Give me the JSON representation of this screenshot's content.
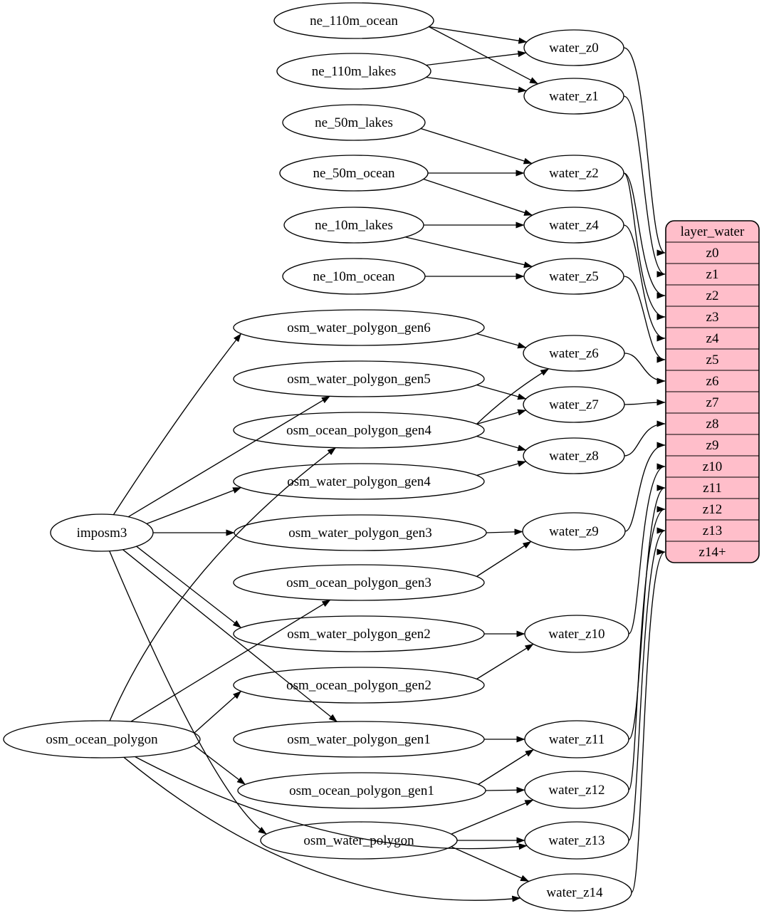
{
  "diagram": {
    "kind": "etl-flow-graph",
    "colors": {
      "background": "#ffffff",
      "node_fill": "#ffffff",
      "table_fill": "#ffbeca",
      "stroke": "#000000"
    },
    "nodes": [
      {
        "id": "imposm3",
        "label": "imposm3"
      },
      {
        "id": "osm_ocean_polygon",
        "label": "osm_ocean_polygon"
      },
      {
        "id": "ne_110m_ocean",
        "label": "ne_110m_ocean"
      },
      {
        "id": "ne_110m_lakes",
        "label": "ne_110m_lakes"
      },
      {
        "id": "ne_50m_lakes",
        "label": "ne_50m_lakes"
      },
      {
        "id": "ne_50m_ocean",
        "label": "ne_50m_ocean"
      },
      {
        "id": "ne_10m_lakes",
        "label": "ne_10m_lakes"
      },
      {
        "id": "ne_10m_ocean",
        "label": "ne_10m_ocean"
      },
      {
        "id": "osm_water_polygon_gen6",
        "label": "osm_water_polygon_gen6"
      },
      {
        "id": "osm_water_polygon_gen5",
        "label": "osm_water_polygon_gen5"
      },
      {
        "id": "osm_ocean_polygon_gen4",
        "label": "osm_ocean_polygon_gen4"
      },
      {
        "id": "osm_water_polygon_gen4",
        "label": "osm_water_polygon_gen4"
      },
      {
        "id": "osm_water_polygon_gen3",
        "label": "osm_water_polygon_gen3"
      },
      {
        "id": "osm_ocean_polygon_gen3",
        "label": "osm_ocean_polygon_gen3"
      },
      {
        "id": "osm_water_polygon_gen2",
        "label": "osm_water_polygon_gen2"
      },
      {
        "id": "osm_ocean_polygon_gen2",
        "label": "osm_ocean_polygon_gen2"
      },
      {
        "id": "osm_water_polygon_gen1",
        "label": "osm_water_polygon_gen1"
      },
      {
        "id": "osm_ocean_polygon_gen1",
        "label": "osm_ocean_polygon_gen1"
      },
      {
        "id": "osm_water_polygon",
        "label": "osm_water_polygon"
      },
      {
        "id": "water_z0",
        "label": "water_z0"
      },
      {
        "id": "water_z1",
        "label": "water_z1"
      },
      {
        "id": "water_z2",
        "label": "water_z2"
      },
      {
        "id": "water_z4",
        "label": "water_z4"
      },
      {
        "id": "water_z5",
        "label": "water_z5"
      },
      {
        "id": "water_z6",
        "label": "water_z6"
      },
      {
        "id": "water_z7",
        "label": "water_z7"
      },
      {
        "id": "water_z8",
        "label": "water_z8"
      },
      {
        "id": "water_z9",
        "label": "water_z9"
      },
      {
        "id": "water_z10",
        "label": "water_z10"
      },
      {
        "id": "water_z11",
        "label": "water_z11"
      },
      {
        "id": "water_z12",
        "label": "water_z12"
      },
      {
        "id": "water_z13",
        "label": "water_z13"
      },
      {
        "id": "water_z14",
        "label": "water_z14"
      }
    ],
    "table": {
      "title": "layer_water",
      "rows": [
        "z0",
        "z1",
        "z2",
        "z3",
        "z4",
        "z5",
        "z6",
        "z7",
        "z8",
        "z9",
        "z10",
        "z11",
        "z12",
        "z13",
        "z14+"
      ]
    },
    "edges": [
      [
        "ne_110m_ocean",
        "water_z0"
      ],
      [
        "ne_110m_ocean",
        "water_z1"
      ],
      [
        "ne_110m_lakes",
        "water_z0"
      ],
      [
        "ne_110m_lakes",
        "water_z1"
      ],
      [
        "ne_50m_lakes",
        "water_z2"
      ],
      [
        "ne_50m_ocean",
        "water_z2"
      ],
      [
        "ne_50m_ocean",
        "water_z4"
      ],
      [
        "ne_10m_lakes",
        "water_z4"
      ],
      [
        "ne_10m_lakes",
        "water_z5"
      ],
      [
        "ne_10m_ocean",
        "water_z5"
      ],
      [
        "imposm3",
        "osm_water_polygon_gen6"
      ],
      [
        "imposm3",
        "osm_water_polygon_gen5"
      ],
      [
        "imposm3",
        "osm_water_polygon_gen4"
      ],
      [
        "imposm3",
        "osm_water_polygon_gen3"
      ],
      [
        "imposm3",
        "osm_water_polygon_gen2"
      ],
      [
        "imposm3",
        "osm_water_polygon_gen1"
      ],
      [
        "imposm3",
        "osm_water_polygon"
      ],
      [
        "osm_ocean_polygon",
        "osm_ocean_polygon_gen4"
      ],
      [
        "osm_ocean_polygon",
        "osm_ocean_polygon_gen3"
      ],
      [
        "osm_ocean_polygon",
        "osm_ocean_polygon_gen2"
      ],
      [
        "osm_ocean_polygon",
        "osm_ocean_polygon_gen1"
      ],
      [
        "osm_ocean_polygon",
        "water_z13"
      ],
      [
        "osm_ocean_polygon",
        "water_z14"
      ],
      [
        "osm_water_polygon_gen6",
        "water_z6"
      ],
      [
        "osm_ocean_polygon_gen4",
        "water_z6"
      ],
      [
        "osm_water_polygon_gen5",
        "water_z7"
      ],
      [
        "osm_ocean_polygon_gen4",
        "water_z7"
      ],
      [
        "osm_water_polygon_gen4",
        "water_z8"
      ],
      [
        "osm_ocean_polygon_gen4",
        "water_z8"
      ],
      [
        "osm_water_polygon_gen3",
        "water_z9"
      ],
      [
        "osm_ocean_polygon_gen3",
        "water_z9"
      ],
      [
        "osm_water_polygon_gen2",
        "water_z10"
      ],
      [
        "osm_ocean_polygon_gen2",
        "water_z10"
      ],
      [
        "osm_water_polygon_gen1",
        "water_z11"
      ],
      [
        "osm_ocean_polygon_gen1",
        "water_z11"
      ],
      [
        "osm_ocean_polygon_gen1",
        "water_z12"
      ],
      [
        "osm_water_polygon",
        "water_z12"
      ],
      [
        "osm_water_polygon",
        "water_z13"
      ],
      [
        "osm_water_polygon",
        "water_z14"
      ],
      [
        "water_z0",
        "row:z0"
      ],
      [
        "water_z1",
        "row:z1"
      ],
      [
        "water_z2",
        "row:z2"
      ],
      [
        "water_z2",
        "row:z3"
      ],
      [
        "water_z4",
        "row:z4"
      ],
      [
        "water_z5",
        "row:z5"
      ],
      [
        "water_z6",
        "row:z6"
      ],
      [
        "water_z7",
        "row:z7"
      ],
      [
        "water_z8",
        "row:z8"
      ],
      [
        "water_z9",
        "row:z9"
      ],
      [
        "water_z10",
        "row:z10"
      ],
      [
        "water_z11",
        "row:z11"
      ],
      [
        "water_z12",
        "row:z12"
      ],
      [
        "water_z13",
        "row:z13"
      ],
      [
        "water_z14",
        "row:z14+"
      ]
    ]
  }
}
